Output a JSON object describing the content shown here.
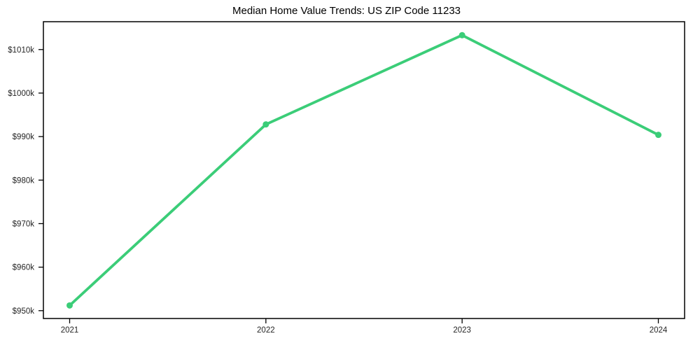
{
  "chart_data": {
    "type": "line",
    "title": "Median Home Value Trends: US ZIP Code 11233",
    "categories": [
      "2021",
      "2022",
      "2023",
      "2024"
    ],
    "series": [
      {
        "name": "",
        "values": [
          951.2,
          992.8,
          1013.3,
          990.4
        ]
      }
    ],
    "value_unit": "USD thousands",
    "xlabel": "",
    "ylabel": "",
    "ylim": [
      948.2,
      1016.4
    ],
    "y_ticks": [
      {
        "value": 950,
        "label": "$950k"
      },
      {
        "value": 960,
        "label": "$960k"
      },
      {
        "value": 970,
        "label": "$970k"
      },
      {
        "value": 980,
        "label": "$980k"
      },
      {
        "value": 990,
        "label": "$990k"
      },
      {
        "value": 1000,
        "label": "$1000k"
      },
      {
        "value": 1010,
        "label": "$1010k"
      }
    ],
    "grid": false,
    "legend_position": "none",
    "line_color": "#3bcd78",
    "marker_color": "#3bcd78",
    "axis_color": "#000000",
    "tick_label_color": "#262626",
    "title_color": "#000000",
    "background_color": "#ffffff"
  }
}
